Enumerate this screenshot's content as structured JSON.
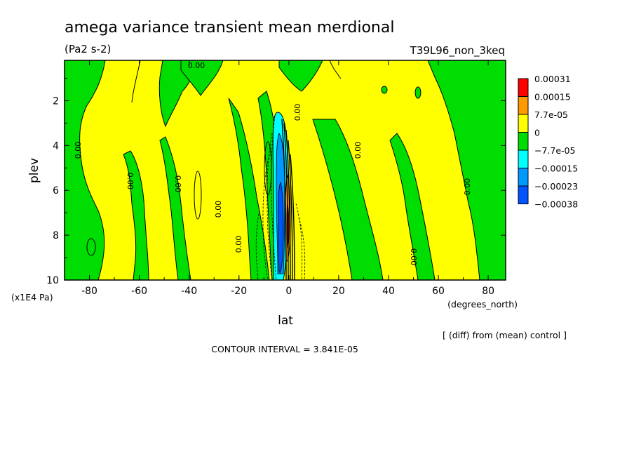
{
  "chart_data": {
    "type": "heatmap",
    "title": "amega variance transient mean merdional",
    "units": "(Pa2 s-2)",
    "experiment": "T39L96_non_3keq",
    "xlabel": "lat",
    "xunits": "(degrees_north)",
    "ylabel": "plev",
    "yunits": "(x1E4 Pa)",
    "xlim": [
      -90,
      87
    ],
    "ylim": [
      10,
      0.2
    ],
    "x_ticks": [
      -80,
      -60,
      -40,
      -20,
      0,
      20,
      40,
      60,
      80
    ],
    "y_ticks": [
      2,
      4,
      6,
      8,
      10
    ],
    "contour_labels": [
      "0.00",
      "0.00",
      "0.00",
      "0.00",
      "0.00",
      "0.00",
      "0.00",
      "0.00",
      "0.00",
      "0.00"
    ],
    "colorbar": {
      "labels": [
        "0.00031",
        "0.00015",
        "7.7e-05",
        "0",
        "−7.7e-05",
        "−0.00015",
        "−0.00023",
        "−0.00038"
      ],
      "colors": [
        "#ff0000",
        "#ff9900",
        "#ffff00",
        "#00dd00",
        "#00ffff",
        "#0099ff",
        "#0055ff"
      ]
    },
    "footnote": "[ (diff) from (mean) control ]",
    "contour_interval": "CONTOUR INTERVAL = 3.841E-05",
    "green_regions_negative": [
      {
        "lat": [
          -90,
          -74
        ],
        "plev": [
          0.2,
          10
        ]
      },
      {
        "lat": [
          -64,
          -54
        ],
        "plev": [
          3,
          10
        ]
      },
      {
        "lat": [
          -44,
          -28
        ],
        "plev": [
          0.2,
          4.5
        ]
      },
      {
        "lat": [
          -22,
          -8
        ],
        "plev": [
          1,
          10
        ]
      },
      {
        "lat": [
          8,
          36
        ],
        "plev": [
          4,
          10
        ]
      },
      {
        "lat": [
          54,
          87
        ],
        "plev": [
          0.2,
          10
        ]
      }
    ],
    "strong_negative_core": {
      "lat": [
        -4,
        4
      ],
      "plev": [
        2.5,
        10
      ],
      "min_value": -0.00038
    },
    "strong_positive_core": {
      "lat": [
        -2,
        3
      ],
      "plev": [
        3.5,
        9.5
      ],
      "max_value": 0.00031
    }
  }
}
